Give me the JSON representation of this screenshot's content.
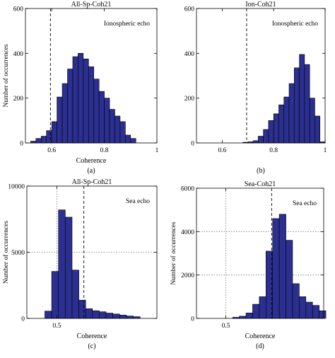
{
  "style": {
    "bar_fill": "#2b2f8f",
    "bar_stroke": "#000000",
    "axis_color": "#000000"
  },
  "chart_data": [
    {
      "type": "bar",
      "panel_label": "(a)",
      "title": "All-Sp-Coh21",
      "annotation": "Ionospheric echo",
      "xlabel": "Coherence",
      "ylabel": "Number of occurrences",
      "xlim": [
        0.5,
        1.0
      ],
      "ylim": [
        0,
        600
      ],
      "xticks": [
        0.6,
        0.8,
        1
      ],
      "xtick_labels": [
        "0.6",
        "0.8",
        "1"
      ],
      "yticks": [
        0,
        200,
        400,
        600
      ],
      "ytick_labels": [
        "0",
        "200",
        "400",
        "600"
      ],
      "grid": false,
      "vline": {
        "x": 0.595,
        "style": "dashed"
      },
      "bin_width": 0.02,
      "bin_starts": [
        0.52,
        0.54,
        0.56,
        0.58,
        0.6,
        0.62,
        0.64,
        0.66,
        0.68,
        0.7,
        0.72,
        0.74,
        0.76,
        0.78,
        0.8,
        0.82,
        0.84,
        0.86,
        0.88,
        0.9
      ],
      "values": [
        8,
        20,
        30,
        55,
        95,
        205,
        265,
        330,
        385,
        400,
        375,
        340,
        285,
        230,
        200,
        150,
        120,
        95,
        35,
        20
      ]
    },
    {
      "type": "bar",
      "panel_label": "(b)",
      "title": "Ion-Coh21",
      "annotation": "Ionospheric echo",
      "xlabel": "",
      "ylabel": "",
      "xlim": [
        0.5,
        1.0
      ],
      "ylim": [
        0,
        600
      ],
      "xticks": [
        0.6,
        0.8,
        1
      ],
      "xtick_labels": [
        "0.6",
        "0.8",
        "1"
      ],
      "yticks": [
        0,
        200,
        400,
        600
      ],
      "ytick_labels": [
        "0",
        "200",
        "400",
        "600"
      ],
      "grid": false,
      "vline": {
        "x": 0.695,
        "style": "dashed"
      },
      "bin_width": 0.02,
      "bin_starts": [
        0.7,
        0.72,
        0.74,
        0.76,
        0.78,
        0.8,
        0.82,
        0.84,
        0.86,
        0.88,
        0.9,
        0.92,
        0.94,
        0.96
      ],
      "values": [
        5,
        10,
        30,
        60,
        100,
        130,
        170,
        205,
        265,
        335,
        395,
        350,
        200,
        120
      ],
      "extra_bins": [
        {
          "start": 0.68,
          "value": 3
        },
        {
          "start": 0.98,
          "value": 5
        }
      ]
    },
    {
      "type": "bar",
      "panel_label": "(c)",
      "title": "All-Sp-Coh21",
      "annotation": "Sea echo",
      "xlabel": "Coherence",
      "ylabel": "Number of occurrences",
      "xlim": [
        0.35,
        1.0
      ],
      "ylim": [
        0,
        10000
      ],
      "xticks": [
        0.5
      ],
      "xtick_labels": [
        "0.5"
      ],
      "yticks": [
        0,
        5000,
        10000
      ],
      "ytick_labels": [
        "0",
        "5000",
        "10000"
      ],
      "grid": true,
      "vline": {
        "x": 0.635,
        "style": "dashed"
      },
      "vline2": {
        "x": 0.5,
        "style": "dotted"
      },
      "bin_width": 0.034,
      "bin_starts": [
        0.44,
        0.474,
        0.508,
        0.542,
        0.576,
        0.61,
        0.644,
        0.678,
        0.712,
        0.746,
        0.78,
        0.814,
        0.848,
        0.882
      ],
      "values": [
        550,
        3550,
        8200,
        7650,
        3650,
        1380,
        730,
        580,
        500,
        400,
        330,
        250,
        180,
        130
      ]
    },
    {
      "type": "bar",
      "panel_label": "(d)",
      "title": "Sea-Coh21",
      "annotation": "Sea echo",
      "xlabel": "Coherence",
      "ylabel": "Number of occurrences",
      "xlim": [
        0.35,
        1.0
      ],
      "ylim": [
        0,
        6000
      ],
      "xticks": [
        0.5
      ],
      "xtick_labels": [
        "0.5"
      ],
      "yticks": [
        0,
        2000,
        4000,
        6000
      ],
      "ytick_labels": [
        "0",
        "2000",
        "4000",
        "6000"
      ],
      "grid": true,
      "vline": {
        "x": 0.734,
        "style": "dashed"
      },
      "vline2": {
        "x": 0.5,
        "style": "dotted"
      },
      "bin_width": 0.034,
      "bin_starts": [
        0.535,
        0.569,
        0.603,
        0.637,
        0.671,
        0.705,
        0.739,
        0.773,
        0.807,
        0.841,
        0.875,
        0.909,
        0.943,
        0.977
      ],
      "values": [
        50,
        100,
        250,
        650,
        1000,
        3100,
        4600,
        4800,
        3600,
        1600,
        1000,
        750,
        600,
        350
      ]
    }
  ]
}
